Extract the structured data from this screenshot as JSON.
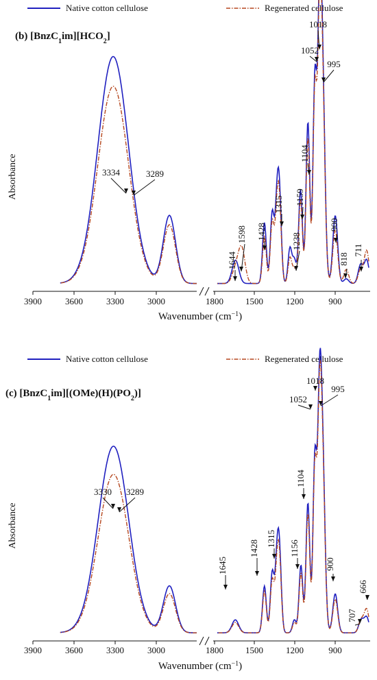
{
  "figure": {
    "panels": [
      {
        "panel_label": "(b)",
        "title_parts": [
          {
            "t": "[BnzC",
            "s": "n"
          },
          {
            "t": "1",
            "s": "sub"
          },
          {
            "t": "im][HCO",
            "s": "n"
          },
          {
            "t": "2",
            "s": "sub"
          },
          {
            "t": "]",
            "s": "n"
          }
        ],
        "legend": [
          "Native cotton cellulose",
          "Regenerated cellulose"
        ],
        "ylabel": "Absorbance",
        "xlabel": "Wavenumber (cm",
        "xlabel_sup": "−1",
        "xlabel_close": ")",
        "ticks_left": [
          "3900",
          "3600",
          "3300",
          "3000"
        ],
        "ticks_right": [
          "1800",
          "1500",
          "1200",
          "900"
        ],
        "annotations": [
          "3334",
          "3289",
          "1644",
          "1598",
          "1428",
          "1315",
          "1238",
          "1159",
          "1104",
          "1052",
          "1018",
          "995",
          "900",
          "818",
          "711"
        ]
      },
      {
        "panel_label": "(c)",
        "title_parts": [
          {
            "t": "[BnzC",
            "s": "n"
          },
          {
            "t": "1",
            "s": "sub"
          },
          {
            "t": "im][(OMe)(H)(PO",
            "s": "n"
          },
          {
            "t": "2",
            "s": "sub"
          },
          {
            "t": ")]",
            "s": "n"
          }
        ],
        "legend": [
          "Native cotton cellulose",
          "Regenerated cellulose"
        ],
        "ylabel": "Absorbance",
        "xlabel": "Wavenumber (cm",
        "xlabel_sup": "−1",
        "xlabel_close": ")",
        "ticks_left": [
          "3900",
          "3600",
          "3300",
          "3000"
        ],
        "ticks_right": [
          "1800",
          "1500",
          "1200",
          "900"
        ],
        "annotations": [
          "3330",
          "3289",
          "1645",
          "1428",
          "1315",
          "1156",
          "1104",
          "1052",
          "1018",
          "995",
          "900",
          "707",
          "666"
        ]
      }
    ],
    "colors": {
      "native": "#1f1fbf",
      "regenerated": "#b5471f",
      "axis": "#111111"
    }
  },
  "chart_data": [
    {
      "type": "line",
      "title": "(b) [BnzC1im][HCO2]",
      "xlabel": "Wavenumber (cm−1)",
      "ylabel": "Absorbance",
      "x_axis": "broken, reversed: 3900–2700 and 1800–650",
      "legend_placement": "top",
      "series": [
        {
          "name": "Native cotton cellulose",
          "style": "solid",
          "peaks": [
            [
              3334,
              1.0
            ],
            [
              3289,
              0.98
            ],
            [
              2900,
              0.58
            ],
            [
              1644,
              0.2
            ],
            [
              1428,
              0.52
            ],
            [
              1370,
              0.6
            ],
            [
              1335,
              0.62
            ],
            [
              1315,
              0.66
            ],
            [
              1238,
              0.3
            ],
            [
              1205,
              0.2
            ],
            [
              1159,
              0.8
            ],
            [
              1104,
              1.38
            ],
            [
              1052,
              1.74
            ],
            [
              1018,
              1.86
            ],
            [
              995,
              1.72
            ],
            [
              900,
              0.58
            ],
            [
              818,
              0.04
            ],
            [
              711,
              0.16
            ],
            [
              666,
              0.2
            ]
          ]
        },
        {
          "name": "Regenerated cellulose",
          "style": "dash-dot",
          "peaks": [
            [
              3334,
              0.86
            ],
            [
              3289,
              0.86
            ],
            [
              2900,
              0.5
            ],
            [
              1644,
              0.12
            ],
            [
              1598,
              0.3
            ],
            [
              1428,
              0.4
            ],
            [
              1370,
              0.52
            ],
            [
              1335,
              0.55
            ],
            [
              1315,
              0.58
            ],
            [
              1238,
              0.22
            ],
            [
              1205,
              0.12
            ],
            [
              1159,
              0.72
            ],
            [
              1104,
              1.25
            ],
            [
              1052,
              1.65
            ],
            [
              1018,
              1.77
            ],
            [
              995,
              1.63
            ],
            [
              900,
              0.46
            ],
            [
              818,
              0.12
            ],
            [
              711,
              0.12
            ],
            [
              666,
              0.28
            ]
          ]
        }
      ]
    },
    {
      "type": "line",
      "title": "(c) [BnzC1im][(OMe)(H)(PO2)]",
      "xlabel": "Wavenumber (cm−1)",
      "ylabel": "Absorbance",
      "x_axis": "broken, reversed: 3900–2700 and 1800–650",
      "legend_placement": "top",
      "series": [
        {
          "name": "Native cotton cellulose",
          "style": "solid",
          "peaks": [
            [
              3330,
              0.74
            ],
            [
              3289,
              0.72
            ],
            [
              2900,
              0.36
            ],
            [
              1645,
              0.1
            ],
            [
              1428,
              0.36
            ],
            [
              1370,
              0.46
            ],
            [
              1335,
              0.5
            ],
            [
              1315,
              0.54
            ],
            [
              1205,
              0.1
            ],
            [
              1156,
              0.52
            ],
            [
              1104,
              1.0
            ],
            [
              1052,
              1.34
            ],
            [
              1018,
              1.44
            ],
            [
              995,
              1.34
            ],
            [
              900,
              0.3
            ],
            [
              707,
              0.1
            ],
            [
              666,
              0.12
            ]
          ]
        },
        {
          "name": "Regenerated cellulose",
          "style": "dash-dot",
          "peaks": [
            [
              3330,
              0.62
            ],
            [
              3289,
              0.62
            ],
            [
              2900,
              0.3
            ],
            [
              1645,
              0.08
            ],
            [
              1428,
              0.32
            ],
            [
              1370,
              0.4
            ],
            [
              1335,
              0.44
            ],
            [
              1315,
              0.48
            ],
            [
              1205,
              0.08
            ],
            [
              1156,
              0.46
            ],
            [
              1104,
              0.92
            ],
            [
              1052,
              1.28
            ],
            [
              1018,
              1.38
            ],
            [
              995,
              1.28
            ],
            [
              900,
              0.26
            ],
            [
              707,
              0.1
            ],
            [
              666,
              0.18
            ]
          ]
        }
      ]
    }
  ]
}
